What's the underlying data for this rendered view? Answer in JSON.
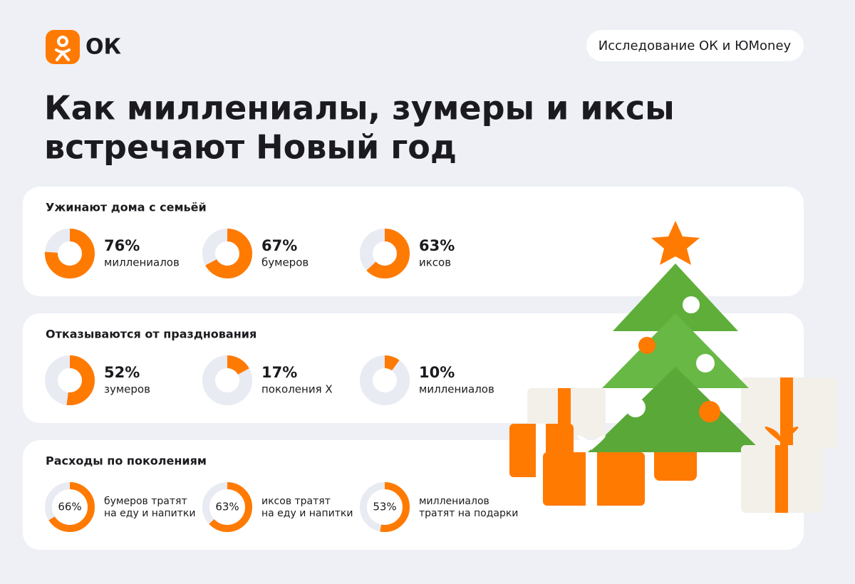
{
  "logo": "ОК",
  "badge": "Исследование ОК и ЮMoney",
  "title_lines": [
    "Как миллениалы, зумеры и иксы",
    "встречают Новый год"
  ],
  "sections": [
    {
      "title": "Ужинают дома с семьёй",
      "style": "outer",
      "values": [
        76,
        67,
        63
      ],
      "value_labels": [
        "76%",
        "67%",
        "63%"
      ],
      "labels": [
        [
          "миллениалов"
        ],
        [
          "бумеров"
        ],
        [
          "иксов"
        ]
      ]
    },
    {
      "title": "Отказываются от празднования",
      "style": "outer",
      "values": [
        52,
        17,
        10
      ],
      "value_labels": [
        "52%",
        "17%",
        "10%"
      ],
      "labels": [
        [
          "зумеров"
        ],
        [
          "поколения X"
        ],
        [
          "миллениалов"
        ]
      ]
    },
    {
      "title": "Расходы по поколениям",
      "style": "inner",
      "values": [
        66,
        63,
        53
      ],
      "value_labels": [
        "66%",
        "63%",
        "53%"
      ],
      "labels": [
        [
          "бумеров тратят",
          "на еду и напитки"
        ],
        [
          "иксов тратят",
          "на еду и напитки"
        ],
        [
          "миллениалов",
          "тратят на подарки"
        ]
      ]
    }
  ]
}
